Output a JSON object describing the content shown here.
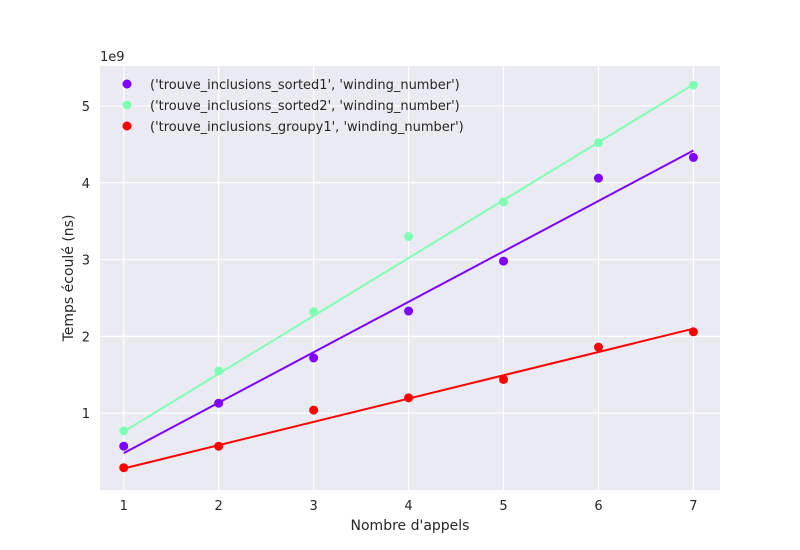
{
  "chart_data": {
    "type": "scatter",
    "xlabel": "Nombre d'appels",
    "ylabel": "Temps écoulé (ns)",
    "y_scale_label": "1e9",
    "xlim": [
      0.75,
      7.28
    ],
    "ylim": [
      0.0,
      5.52
    ],
    "x_ticks": [
      1,
      2,
      3,
      4,
      5,
      6,
      7
    ],
    "y_ticks": [
      1,
      2,
      3,
      4,
      5
    ],
    "grid": true,
    "legend_position": "top-left",
    "x": [
      1,
      2,
      3,
      4,
      5,
      6,
      7
    ],
    "series": [
      {
        "name": "('trouve_inclusions_sorted1', 'winding_number')",
        "color": "#7f00ff",
        "values": [
          0.57,
          1.13,
          1.72,
          2.33,
          2.98,
          4.06,
          4.33
        ],
        "fit": [
          0.48,
          4.42
        ]
      },
      {
        "name": "('trouve_inclusions_sorted2', 'winding_number')",
        "color": "#80ffb4",
        "values": [
          0.77,
          1.55,
          2.32,
          3.3,
          3.75,
          4.52,
          5.27
        ],
        "fit": [
          0.76,
          5.28
        ]
      },
      {
        "name": "('trouve_inclusions_groupy1', 'winding_number')",
        "color": "#ff0000",
        "values": [
          0.29,
          0.57,
          1.04,
          1.2,
          1.44,
          1.86,
          2.06
        ],
        "fit": [
          0.28,
          2.1
        ]
      }
    ]
  }
}
